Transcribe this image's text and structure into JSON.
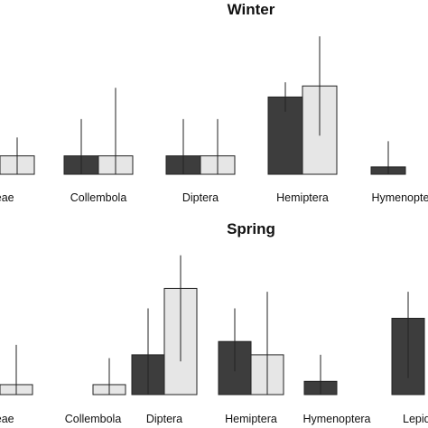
{
  "chart_data": [
    {
      "type": "bar",
      "title": "Winter",
      "categories": [
        "...eae",
        "Collembola",
        "Diptera",
        "Hemiptera",
        "Hymenoptera"
      ],
      "series": [
        {
          "values": [
            0.1,
            1.0,
            1.0,
            4.2,
            0.4
          ],
          "err_high": [
            1.9,
            3.0,
            3.0,
            5.0,
            1.8
          ],
          "err_low": [
            0.0,
            0.0,
            0.0,
            3.4,
            0.0
          ]
        },
        {
          "values": [
            1.0,
            1.0,
            1.0,
            4.8,
            0.0
          ],
          "err_high": [
            2.0,
            4.7,
            3.0,
            7.5,
            0.0
          ],
          "err_low": [
            0.0,
            0.0,
            0.0,
            2.1,
            0.0
          ]
        }
      ],
      "ylim": [
        0,
        8
      ],
      "colors": [
        "#3d3d3d",
        "#e6e6e6"
      ]
    },
    {
      "type": "bar",
      "title": "Spring",
      "categories": [
        "...eae",
        "Collembola",
        "Diptera",
        "Hemiptera",
        "Hymenoptera",
        "Lepido..."
      ],
      "series": [
        {
          "values": [
            0.3,
            0.0,
            1.2,
            1.6,
            0.4,
            2.3
          ],
          "err_high": [
            1.5,
            0.0,
            2.6,
            2.6,
            1.2,
            3.1
          ],
          "err_low": [
            0.0,
            0.0,
            0.0,
            0.7,
            0.0,
            0.5
          ]
        },
        {
          "values": [
            0.3,
            0.3,
            3.2,
            1.2,
            0.0,
            0.0
          ],
          "err_high": [
            1.5,
            1.1,
            4.2,
            3.1,
            0.0,
            0.0
          ],
          "err_low": [
            0.0,
            0.0,
            1.0,
            0.0,
            0.0,
            0.0
          ]
        }
      ],
      "ylim": [
        0,
        4.6
      ],
      "colors": [
        "#3d3d3d",
        "#e6e6e6"
      ]
    }
  ]
}
